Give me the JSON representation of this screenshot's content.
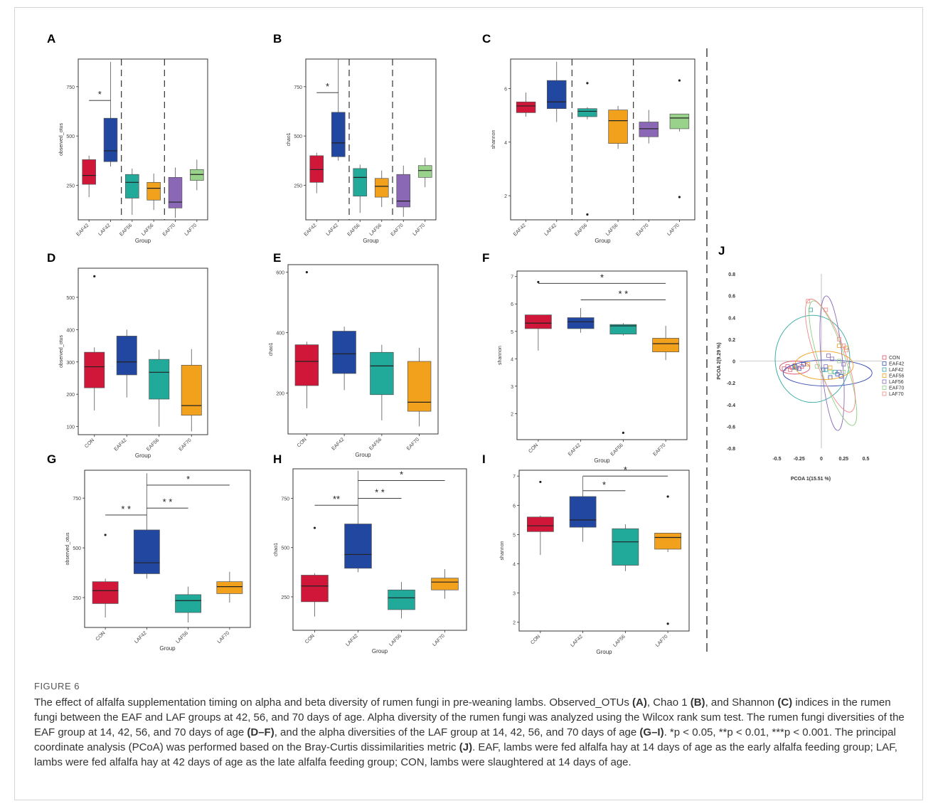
{
  "figure_label": "FIGURE 6",
  "caption": {
    "intro": "The effect of alfalfa supplementation timing on alpha and beta diversity of rumen fungi in pre-weaning lambs. Observed_OTUs ",
    "A": "(A)",
    "t1": ", Chao 1 ",
    "B": "(B)",
    "t2": ", and Shannon ",
    "C": "(C)",
    "t3": " indices in the rumen fungi between the EAF and LAF groups at 42, 56, and 70 days of age. Alpha diversity of the rumen fungi was analyzed using the Wilcox rank sum test. The rumen fungi diversities of the EAF group at 14, 42, 56, and 70 days of age ",
    "DF": "(D–F)",
    "t4": ", and the alpha diversities of the LAF group at 14, 42, 56, and 70 days of age ",
    "GI": "(G–I)",
    "t5": ". *p < 0.05, **p < 0.01, ***p < 0.001. The principal coordinate analysis (PCoA) was performed based on the Bray-Curtis dissimilarities metric ",
    "J": "(J)",
    "t6": ". EAF, lambs were fed alfalfa hay at 14 days of age as the early alfalfa feeding group; LAF, lambs were fed alfalfa hay at 42 days of age as the late alfalfa feeding group; CON, lambs were slaughtered at 14 days of age."
  },
  "colors": {
    "red": "#d0173a",
    "blue": "#2247a0",
    "teal": "#21a99a",
    "orange": "#f1a11c",
    "purple": "#8a68b5",
    "green": "#99d28a"
  },
  "chart_data": [
    {
      "panel": "A",
      "type": "box",
      "xlabel": "Group",
      "ylabel": "observed_otus",
      "ylim": [
        75,
        890
      ],
      "yticks": [
        250,
        500,
        750
      ],
      "categories": [
        "EAF42",
        "LAF42",
        "EAF56",
        "LAF56",
        "EAF70",
        "LAF70"
      ],
      "colors": [
        "#d0173a",
        "#2247a0",
        "#21a99a",
        "#f1a11c",
        "#8a68b5",
        "#99d28a"
      ],
      "boxes": [
        {
          "min": 190,
          "q1": 255,
          "median": 300,
          "q3": 380,
          "max": 400
        },
        {
          "min": 345,
          "q1": 370,
          "median": 425,
          "q3": 590,
          "max": 875
        },
        {
          "min": 100,
          "q1": 185,
          "median": 265,
          "q3": 305,
          "max": 335
        },
        {
          "min": 125,
          "q1": 175,
          "median": 235,
          "q3": 265,
          "max": 310
        },
        {
          "min": 85,
          "q1": 135,
          "median": 165,
          "q3": 290,
          "max": 340
        },
        {
          "min": 225,
          "q1": 275,
          "median": 305,
          "q3": 330,
          "max": 380
        }
      ],
      "outliers": [],
      "dividers": [
        2,
        4
      ],
      "sig": [
        {
          "from": 0,
          "to": 1,
          "label": "*",
          "y": 680
        }
      ]
    },
    {
      "panel": "B",
      "type": "box",
      "xlabel": "Group",
      "ylabel": "chao1",
      "ylim": [
        75,
        890
      ],
      "yticks": [
        250,
        500,
        750
      ],
      "categories": [
        "EAF42",
        "LAF42",
        "EAF56",
        "LAF56",
        "EAF70",
        "LAF70"
      ],
      "colors": [
        "#d0173a",
        "#2247a0",
        "#21a99a",
        "#f1a11c",
        "#8a68b5",
        "#99d28a"
      ],
      "boxes": [
        {
          "min": 210,
          "q1": 265,
          "median": 330,
          "q3": 400,
          "max": 415
        },
        {
          "min": 375,
          "q1": 395,
          "median": 465,
          "q3": 620,
          "max": 890
        },
        {
          "min": 110,
          "q1": 195,
          "median": 290,
          "q3": 335,
          "max": 355
        },
        {
          "min": 140,
          "q1": 190,
          "median": 245,
          "q3": 285,
          "max": 325
        },
        {
          "min": 90,
          "q1": 140,
          "median": 170,
          "q3": 305,
          "max": 350
        },
        {
          "min": 240,
          "q1": 290,
          "median": 325,
          "q3": 350,
          "max": 390
        }
      ],
      "outliers": [],
      "dividers": [
        2,
        4
      ],
      "sig": [
        {
          "from": 0,
          "to": 1,
          "label": "*",
          "y": 720
        }
      ]
    },
    {
      "panel": "C",
      "type": "box",
      "xlabel": "Group",
      "ylabel": "shannon",
      "ylim": [
        1.1,
        7.1
      ],
      "yticks": [
        2,
        4,
        6
      ],
      "categories": [
        "EAF42",
        "LAF42",
        "EAF56",
        "LAF56",
        "EAF70",
        "LAF70"
      ],
      "colors": [
        "#d0173a",
        "#2247a0",
        "#21a99a",
        "#f1a11c",
        "#8a68b5",
        "#99d28a"
      ],
      "boxes": [
        {
          "min": 4.95,
          "q1": 5.1,
          "median": 5.35,
          "q3": 5.5,
          "max": 5.85
        },
        {
          "min": 4.75,
          "q1": 5.25,
          "median": 5.5,
          "q3": 6.3,
          "max": 7.0
        },
        {
          "min": 4.85,
          "q1": 4.95,
          "median": 5.15,
          "q3": 5.25,
          "max": 5.3
        },
        {
          "min": 3.75,
          "q1": 3.95,
          "median": 4.8,
          "q3": 5.2,
          "max": 5.35
        },
        {
          "min": 3.95,
          "q1": 4.2,
          "median": 4.5,
          "q3": 4.75,
          "max": 5.2
        },
        {
          "min": 4.4,
          "q1": 4.5,
          "median": 4.9,
          "q3": 5.05,
          "max": 5.05
        }
      ],
      "outliers": [
        {
          "i": 2,
          "v": 6.2
        },
        {
          "i": 2,
          "v": 1.3
        },
        {
          "i": 5,
          "v": 6.3
        },
        {
          "i": 5,
          "v": 1.95
        }
      ],
      "dividers": [
        2,
        4
      ],
      "sig": []
    },
    {
      "panel": "D",
      "type": "box",
      "xlabel": "Group",
      "ylabel": "observed_otus",
      "ylim": [
        75,
        590
      ],
      "yticks": [
        100,
        200,
        300,
        400,
        500
      ],
      "categories": [
        "CON",
        "EAF42",
        "EAF56",
        "EAF70"
      ],
      "colors": [
        "#d0173a",
        "#2247a0",
        "#21a99a",
        "#f1a11c"
      ],
      "boxes": [
        {
          "min": 150,
          "q1": 220,
          "median": 285,
          "q3": 330,
          "max": 345
        },
        {
          "min": 190,
          "q1": 260,
          "median": 300,
          "q3": 380,
          "max": 400
        },
        {
          "min": 100,
          "q1": 185,
          "median": 268,
          "q3": 308,
          "max": 338
        },
        {
          "min": 85,
          "q1": 135,
          "median": 165,
          "q3": 290,
          "max": 340
        }
      ],
      "outliers": [
        {
          "i": 0,
          "v": 565
        }
      ],
      "dividers": [],
      "sig": []
    },
    {
      "panel": "E",
      "type": "box",
      "xlabel": "Group",
      "ylabel": "chao1",
      "ylim": [
        65,
        625
      ],
      "yticks": [
        200,
        400,
        600
      ],
      "categories": [
        "CON",
        "EAF42",
        "EAF56",
        "EAF70"
      ],
      "colors": [
        "#d0173a",
        "#2247a0",
        "#21a99a",
        "#f1a11c"
      ],
      "boxes": [
        {
          "min": 150,
          "q1": 225,
          "median": 305,
          "q3": 360,
          "max": 370
        },
        {
          "min": 210,
          "q1": 265,
          "median": 330,
          "q3": 405,
          "max": 420
        },
        {
          "min": 110,
          "q1": 195,
          "median": 290,
          "q3": 335,
          "max": 360
        },
        {
          "min": 90,
          "q1": 140,
          "median": 170,
          "q3": 305,
          "max": 350
        }
      ],
      "outliers": [
        {
          "i": 0,
          "v": 600
        }
      ],
      "dividers": [],
      "sig": []
    },
    {
      "panel": "F",
      "type": "box",
      "xlabel": "Group",
      "ylabel": "shannon",
      "ylim": [
        1.05,
        7.2
      ],
      "yticks": [
        2,
        3,
        4,
        5,
        6,
        7
      ],
      "categories": [
        "CON",
        "EAF42",
        "EAF56",
        "EAF70"
      ],
      "colors": [
        "#d0173a",
        "#2247a0",
        "#21a99a",
        "#f1a11c"
      ],
      "boxes": [
        {
          "min": 4.3,
          "q1": 5.1,
          "median": 5.3,
          "q3": 5.6,
          "max": 5.6
        },
        {
          "min": 4.95,
          "q1": 5.1,
          "median": 5.35,
          "q3": 5.5,
          "max": 5.85
        },
        {
          "min": 4.85,
          "q1": 4.9,
          "median": 5.2,
          "q3": 5.25,
          "max": 5.3
        },
        {
          "min": 3.95,
          "q1": 4.25,
          "median": 4.55,
          "q3": 4.75,
          "max": 5.2
        }
      ],
      "outliers": [
        {
          "i": 0,
          "v": 6.8
        },
        {
          "i": 2,
          "v": 1.3
        }
      ],
      "dividers": [],
      "sig": [
        {
          "from": 0,
          "to": 3,
          "label": "*",
          "y": 6.75
        },
        {
          "from": 1,
          "to": 3,
          "label": "* *",
          "y": 6.15
        }
      ]
    },
    {
      "panel": "G",
      "type": "box",
      "xlabel": "Group",
      "ylabel": "observed_otus",
      "ylim": [
        100,
        890
      ],
      "yticks": [
        250,
        500,
        750
      ],
      "categories": [
        "CON",
        "LAF42",
        "LAF56",
        "LAF70"
      ],
      "colors": [
        "#d0173a",
        "#2247a0",
        "#21a99a",
        "#f1a11c"
      ],
      "boxes": [
        {
          "min": 150,
          "q1": 220,
          "median": 285,
          "q3": 330,
          "max": 345
        },
        {
          "min": 345,
          "q1": 370,
          "median": 425,
          "q3": 590,
          "max": 875
        },
        {
          "min": 125,
          "q1": 175,
          "median": 235,
          "q3": 265,
          "max": 305
        },
        {
          "min": 225,
          "q1": 270,
          "median": 305,
          "q3": 330,
          "max": 380
        }
      ],
      "outliers": [
        {
          "i": 0,
          "v": 565
        }
      ],
      "dividers": [],
      "sig": [
        {
          "from": 0,
          "to": 1,
          "label": "* *",
          "y": 665
        },
        {
          "from": 1,
          "to": 3,
          "label": "*",
          "y": 815
        },
        {
          "from": 1,
          "to": 2,
          "label": "* *",
          "y": 700
        }
      ]
    },
    {
      "panel": "H",
      "type": "box",
      "xlabel": "Group",
      "ylabel": "chao1",
      "ylim": [
        80,
        900
      ],
      "yticks": [
        250,
        500,
        750
      ],
      "categories": [
        "CON",
        "LAF42",
        "LAF56",
        "LAF70"
      ],
      "colors": [
        "#d0173a",
        "#2247a0",
        "#21a99a",
        "#f1a11c"
      ],
      "boxes": [
        {
          "min": 150,
          "q1": 225,
          "median": 305,
          "q3": 360,
          "max": 370
        },
        {
          "min": 375,
          "q1": 395,
          "median": 465,
          "q3": 620,
          "max": 890
        },
        {
          "min": 140,
          "q1": 185,
          "median": 245,
          "q3": 285,
          "max": 325
        },
        {
          "min": 240,
          "q1": 285,
          "median": 325,
          "q3": 345,
          "max": 390
        }
      ],
      "outliers": [
        {
          "i": 0,
          "v": 600
        }
      ],
      "dividers": [],
      "sig": [
        {
          "from": 0,
          "to": 1,
          "label": "**",
          "y": 715
        },
        {
          "from": 1,
          "to": 3,
          "label": "*",
          "y": 840
        },
        {
          "from": 1,
          "to": 2,
          "label": "* *",
          "y": 750
        }
      ]
    },
    {
      "panel": "I",
      "type": "box",
      "xlabel": "Group",
      "ylabel": "shannon",
      "ylim": [
        1.7,
        7.2
      ],
      "yticks": [
        2,
        3,
        4,
        5,
        6,
        7
      ],
      "categories": [
        "CON",
        "LAF42",
        "LAF56",
        "LAF70"
      ],
      "colors": [
        "#d0173a",
        "#2247a0",
        "#21a99a",
        "#f1a11c"
      ],
      "boxes": [
        {
          "min": 4.3,
          "q1": 5.1,
          "median": 5.3,
          "q3": 5.6,
          "max": 5.65
        },
        {
          "min": 4.75,
          "q1": 5.25,
          "median": 5.5,
          "q3": 6.3,
          "max": 7.0
        },
        {
          "min": 3.75,
          "q1": 3.95,
          "median": 4.75,
          "q3": 5.2,
          "max": 5.35
        },
        {
          "min": 4.4,
          "q1": 4.5,
          "median": 4.9,
          "q3": 5.05,
          "max": 5.05
        }
      ],
      "outliers": [
        {
          "i": 0,
          "v": 6.8
        },
        {
          "i": 3,
          "v": 6.3
        },
        {
          "i": 3,
          "v": 1.95
        }
      ],
      "dividers": [],
      "sig": [
        {
          "from": 1,
          "to": 3,
          "label": "*",
          "y": 7.0
        },
        {
          "from": 1,
          "to": 2,
          "label": "*",
          "y": 6.5
        }
      ]
    },
    {
      "panel": "J",
      "type": "scatter",
      "xlabel": "PCOA 1(15.51 %)",
      "ylabel": "PCOA 2(9.29 %)",
      "xlim": [
        -0.92,
        0.68
      ],
      "ylim": [
        -0.8,
        0.8
      ],
      "xticks": [
        -0.5,
        -0.25,
        0,
        0.25,
        0.5
      ],
      "xticklabels": [
        "-0.5",
        "-0.25",
        "0",
        "0.25",
        "0.5"
      ],
      "yticks": [
        -0.8,
        -0.6,
        -0.4,
        -0.2,
        0,
        0.2,
        0.4,
        0.6,
        0.8
      ],
      "yticklabels": [
        "-0.8",
        "-0.6",
        "-0.4",
        "-0.2",
        "0",
        "0.2",
        "0.4",
        "0.6",
        "0.8"
      ],
      "legend": "right",
      "groups": [
        {
          "name": "CON",
          "color": "#e0506a",
          "points": [
            [
              -0.42,
              -0.07
            ],
            [
              -0.38,
              -0.05
            ],
            [
              -0.35,
              -0.08
            ],
            [
              -0.33,
              -0.06
            ],
            [
              -0.3,
              -0.04
            ],
            [
              -0.28,
              -0.06
            ],
            [
              -0.22,
              -0.05
            ]
          ],
          "ellipse": {
            "cx": -0.3,
            "cy": -0.06,
            "rx": 0.17,
            "ry": 0.06,
            "angle": 0
          }
        },
        {
          "name": "EAF42",
          "color": "#3b4fb8",
          "points": [
            [
              -0.3,
              -0.05
            ],
            [
              -0.25,
              -0.07
            ],
            [
              -0.2,
              -0.03
            ],
            [
              0.02,
              -0.08
            ],
            [
              0.1,
              -0.15
            ],
            [
              0.18,
              -0.12
            ],
            [
              0.22,
              -0.14
            ]
          ],
          "ellipse": {
            "cx": 0.07,
            "cy": -0.11,
            "rx": 0.5,
            "ry": 0.12,
            "angle": 0
          }
        },
        {
          "name": "LAF42",
          "color": "#2aa7a0",
          "points": [
            [
              -0.3,
              -0.06
            ],
            [
              -0.12,
              0.47
            ],
            [
              0.05,
              -0.08
            ],
            [
              0.15,
              -0.1
            ]
          ],
          "ellipse": {
            "cx": -0.1,
            "cy": 0.02,
            "rx": 0.42,
            "ry": 0.4,
            "angle": 0
          }
        },
        {
          "name": "EAF56",
          "color": "#f2a11c",
          "points": [
            [
              -0.15,
              -0.03
            ],
            [
              0.1,
              -0.06
            ],
            [
              0.2,
              0.14
            ],
            [
              0.28,
              0.12
            ]
          ],
          "ellipse": {
            "cx": 0.03,
            "cy": -0.04,
            "rx": 0.33,
            "ry": 0.13,
            "angle": 0
          }
        },
        {
          "name": "LAF56",
          "color": "#8c6bb8",
          "points": [
            [
              0.05,
              -0.05
            ],
            [
              0.08,
              0.05
            ],
            [
              0.12,
              0.02
            ],
            [
              0.2,
              -0.1
            ],
            [
              0.25,
              -0.03
            ]
          ],
          "ellipse": {
            "cx": 0.12,
            "cy": -0.02,
            "rx": 0.12,
            "ry": 0.62,
            "angle": -5
          }
        },
        {
          "name": "EAF70",
          "color": "#8fcf83",
          "points": [
            [
              -0.05,
              -0.05
            ],
            [
              0.1,
              -0.1
            ],
            [
              0.2,
              0.0
            ],
            [
              0.25,
              -0.1
            ]
          ],
          "ellipse": {
            "cx": 0.13,
            "cy": -0.02,
            "rx": 0.15,
            "ry": 0.6,
            "angle": -18
          }
        },
        {
          "name": "LAF70",
          "color": "#f08a8a",
          "points": [
            [
              -0.15,
              0.55
            ],
            [
              0.05,
              0.47
            ],
            [
              0.2,
              0.2
            ],
            [
              0.25,
              0.14
            ],
            [
              0.28,
              0.1
            ]
          ],
          "ellipse": {
            "cx": 0.1,
            "cy": 0.05,
            "rx": 0.17,
            "ry": 0.55,
            "angle": -20
          }
        }
      ]
    }
  ],
  "panel_titles": [
    "A",
    "B",
    "C",
    "D",
    "E",
    "F",
    "G",
    "H",
    "I",
    "J"
  ]
}
